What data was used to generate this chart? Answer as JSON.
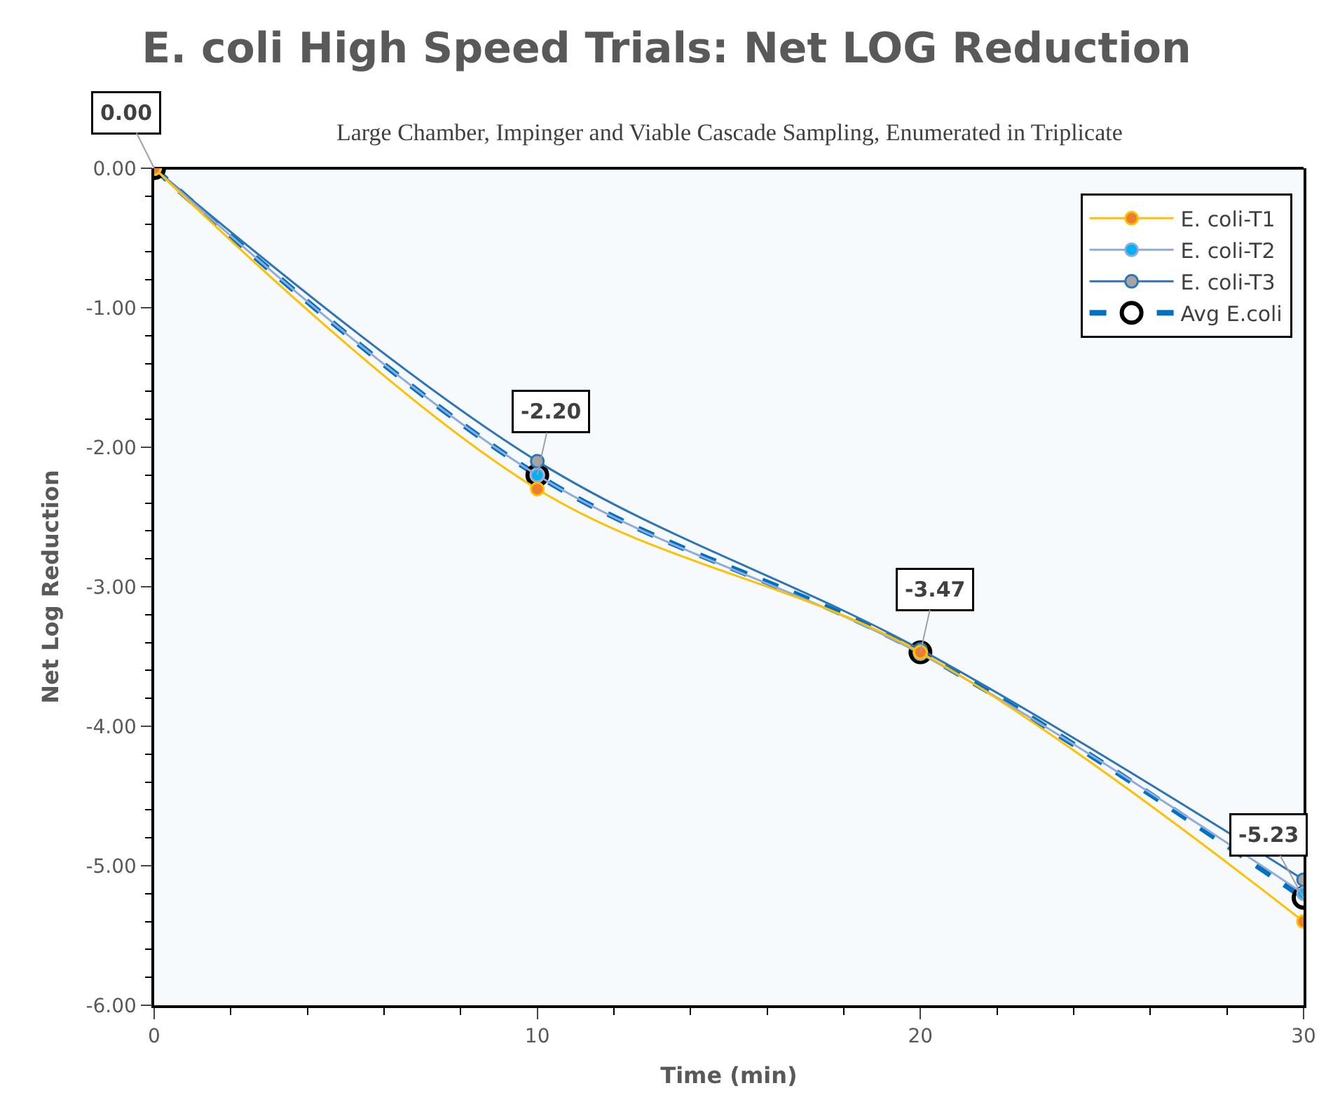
{
  "chart_data": {
    "type": "line",
    "title": "E. coli High Speed Trials: Net LOG Reduction",
    "subtitle": "Large Chamber, Impinger and Viable Cascade Sampling, Enumerated in Triplicate",
    "xlabel": "Time (min)",
    "ylabel": "Net Log Reduction",
    "x": [
      0,
      10,
      20,
      30
    ],
    "series": [
      {
        "name": "E. coli-T1",
        "color": "#ffc000",
        "colors": [
          "#ed7d31",
          "#ed7d31",
          "#ed7d31",
          "#ed7d31"
        ],
        "values": [
          0,
          -2.3,
          -3.47,
          -5.4
        ]
      },
      {
        "name": "E. coli-T2",
        "color": "#8faadc",
        "colors": [
          "#00b0f0",
          "#00b0f0",
          "#00b0f0",
          "#00b0f0"
        ],
        "values": [
          0,
          -2.2,
          -3.48,
          -5.2
        ]
      },
      {
        "name": "E. coli-T3",
        "color": "#2e75b6",
        "colors": [
          "#a5a5a5",
          "#a5a5a5",
          "#a5a5a5",
          "#a5a5a5"
        ],
        "values": [
          0,
          -2.1,
          -3.45,
          -5.1
        ]
      },
      {
        "name": "Avg E.coli",
        "color": "#0070c0",
        "colors": [
          "#ffffff",
          "#ffffff",
          "#ffffff",
          "#ffffff"
        ],
        "line_style": "dashed",
        "values": [
          0,
          -2.2,
          -3.47,
          -5.23
        ],
        "value_labels": [
          "0.00",
          "-2.20",
          "-3.47",
          "-5.23"
        ]
      }
    ],
    "xlim": [
      0,
      30
    ],
    "xticks": [
      0,
      10,
      20,
      30
    ],
    "ylim": [
      -6,
      0
    ],
    "yticks": [
      {
        "value": 0,
        "label": "0.00"
      },
      {
        "value": -1,
        "label": "-1.00"
      },
      {
        "value": -2,
        "label": "-2.00"
      },
      {
        "value": -3,
        "label": "-3.00"
      },
      {
        "value": -4,
        "label": "-4.00"
      },
      {
        "value": -5,
        "label": "-5.00"
      },
      {
        "value": -6,
        "label": "-6.00"
      }
    ],
    "grid": false,
    "legend": "top right",
    "marker": "circle"
  }
}
